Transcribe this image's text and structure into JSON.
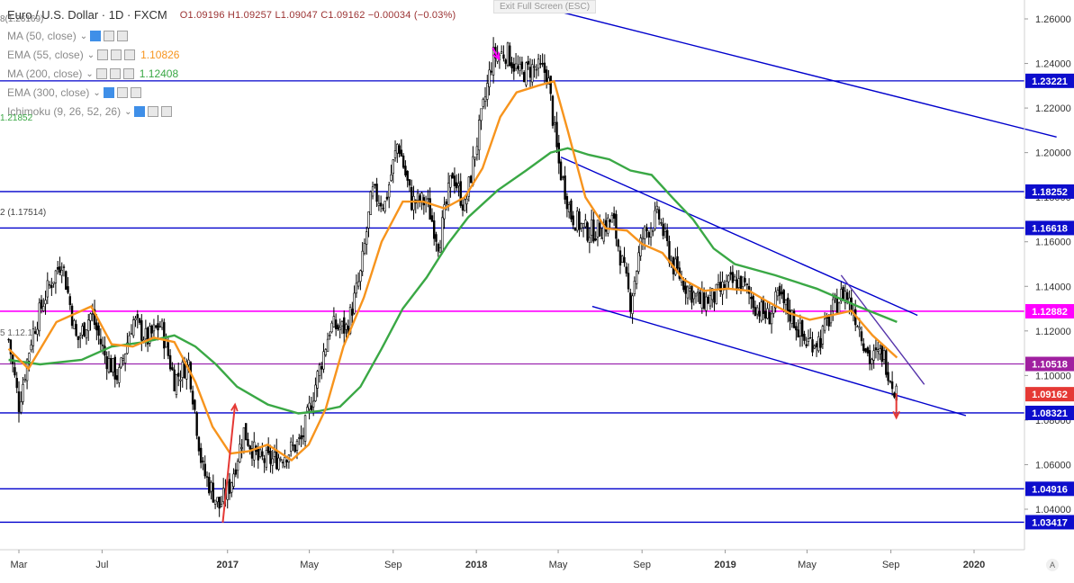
{
  "header": {
    "symbol": "Euro / U.S. Dollar",
    "interval": "1D",
    "exchange": "FXCM",
    "ohlc": "O1.09196  H1.09257  L1.09047  C1.09162  −0.00034 (−0.03%)",
    "exit_fullscreen": "Exit Full Screen (ESC)"
  },
  "indicators": [
    {
      "label": "MA (50, close)",
      "value": "",
      "color": "#8a8a8a"
    },
    {
      "label": "EMA (55, close)",
      "value": "1.10826",
      "color": "#f7941d"
    },
    {
      "label": "MA (200, close)",
      "value": "1.12408",
      "color": "#3aa845"
    },
    {
      "label": "EMA (300, close)",
      "value": "",
      "color": "#8a8a8a"
    },
    {
      "label": "Ichimoku (9, 26, 52, 26)",
      "value": "",
      "color": "#8a8a8a"
    }
  ],
  "fragments": {
    "f1": "8(1.26169)",
    "f2": "2 (1.17514)",
    "f3": "5 1.12.1"
  },
  "ichimoku_value": "1.21852",
  "colors": {
    "candle": "#000000",
    "ema55": "#f7941d",
    "ma200": "#3aa845",
    "level_blue": "#0000cc",
    "level_pink": "#ff00ff",
    "level_purple": "#9c27b0",
    "label_blue": "#0d0dcc",
    "label_pink": "#ff00ff",
    "label_purple": "#a020a0",
    "label_red": "#e53935"
  },
  "chart_data": {
    "type": "line",
    "yticks": [
      1.26,
      1.24,
      1.22,
      1.2,
      1.18,
      1.16,
      1.14,
      1.12,
      1.1,
      1.08,
      1.06,
      1.04
    ],
    "ytick_labels": [
      "1.26000",
      "1.24000",
      "1.22000",
      "1.20000",
      "1.18000",
      "1.16000",
      "1.14000",
      "1.12000",
      "1.10000",
      "1.08000",
      "1.06000",
      "1.04000"
    ],
    "xticks": [
      {
        "label": "Mar",
        "date": "2016-03-01",
        "bold": false
      },
      {
        "label": "Jul",
        "date": "2016-07-01",
        "bold": false
      },
      {
        "label": "2017",
        "date": "2017-01-01",
        "bold": true
      },
      {
        "label": "May",
        "date": "2017-05-01",
        "bold": false
      },
      {
        "label": "Sep",
        "date": "2017-09-01",
        "bold": false
      },
      {
        "label": "2018",
        "date": "2018-01-01",
        "bold": true
      },
      {
        "label": "May",
        "date": "2018-05-01",
        "bold": false
      },
      {
        "label": "Sep",
        "date": "2018-09-01",
        "bold": false
      },
      {
        "label": "2019",
        "date": "2019-01-01",
        "bold": true
      },
      {
        "label": "May",
        "date": "2019-05-01",
        "bold": false
      },
      {
        "label": "Sep",
        "date": "2019-09-01",
        "bold": false
      },
      {
        "label": "2020",
        "date": "2020-01-01",
        "bold": true
      }
    ],
    "price_levels": [
      {
        "value": 1.23221,
        "label": "1.23221",
        "style": "blue"
      },
      {
        "value": 1.18252,
        "label": "1.18252",
        "style": "blue"
      },
      {
        "value": 1.16618,
        "label": "1.16618",
        "style": "blue"
      },
      {
        "value": 1.12882,
        "label": "1.12882",
        "style": "pink"
      },
      {
        "value": 1.10518,
        "label": "1.10518",
        "style": "purple"
      },
      {
        "value": 1.08321,
        "label": "1.08321",
        "style": "blue"
      },
      {
        "value": 1.04916,
        "label": "1.04916",
        "style": "blue"
      },
      {
        "value": 1.03417,
        "label": "1.03417",
        "style": "blue"
      }
    ],
    "last_price": {
      "value": 1.09162,
      "label": "1.09162"
    },
    "close_series": [
      [
        "2016-02-15",
        1.116
      ],
      [
        "2016-03-01",
        1.087
      ],
      [
        "2016-03-20",
        1.118
      ],
      [
        "2016-04-10",
        1.137
      ],
      [
        "2016-05-03",
        1.152
      ],
      [
        "2016-05-25",
        1.115
      ],
      [
        "2016-06-15",
        1.128
      ],
      [
        "2016-07-05",
        1.109
      ],
      [
        "2016-07-25",
        1.099
      ],
      [
        "2016-08-15",
        1.125
      ],
      [
        "2016-09-05",
        1.116
      ],
      [
        "2016-09-25",
        1.123
      ],
      [
        "2016-10-15",
        1.098
      ],
      [
        "2016-11-05",
        1.106
      ],
      [
        "2016-11-25",
        1.058
      ],
      [
        "2016-12-20",
        1.041
      ],
      [
        "2017-01-05",
        1.051
      ],
      [
        "2017-01-25",
        1.075
      ],
      [
        "2017-02-15",
        1.062
      ],
      [
        "2017-03-10",
        1.062
      ],
      [
        "2017-04-01",
        1.066
      ],
      [
        "2017-04-20",
        1.071
      ],
      [
        "2017-05-10",
        1.096
      ],
      [
        "2017-06-01",
        1.122
      ],
      [
        "2017-06-25",
        1.121
      ],
      [
        "2017-07-15",
        1.145
      ],
      [
        "2017-08-01",
        1.182
      ],
      [
        "2017-08-20",
        1.177
      ],
      [
        "2017-09-08",
        1.205
      ],
      [
        "2017-09-28",
        1.178
      ],
      [
        "2017-10-20",
        1.178
      ],
      [
        "2017-11-07",
        1.159
      ],
      [
        "2017-11-27",
        1.191
      ],
      [
        "2017-12-15",
        1.175
      ],
      [
        "2018-01-02",
        1.205
      ],
      [
        "2018-01-25",
        1.243
      ],
      [
        "2018-02-15",
        1.245
      ],
      [
        "2018-03-05",
        1.235
      ],
      [
        "2018-03-25",
        1.238
      ],
      [
        "2018-04-15",
        1.236
      ],
      [
        "2018-05-01",
        1.196
      ],
      [
        "2018-05-20",
        1.172
      ],
      [
        "2018-06-10",
        1.165
      ],
      [
        "2018-06-28",
        1.165
      ],
      [
        "2018-07-20",
        1.17
      ],
      [
        "2018-08-15",
        1.133
      ],
      [
        "2018-09-01",
        1.162
      ],
      [
        "2018-09-25",
        1.172
      ],
      [
        "2018-10-15",
        1.15
      ],
      [
        "2018-11-05",
        1.14
      ],
      [
        "2018-11-25",
        1.133
      ],
      [
        "2018-12-15",
        1.135
      ],
      [
        "2019-01-05",
        1.141
      ],
      [
        "2019-01-25",
        1.142
      ],
      [
        "2019-02-15",
        1.131
      ],
      [
        "2019-03-05",
        1.126
      ],
      [
        "2019-03-20",
        1.135
      ],
      [
        "2019-04-10",
        1.126
      ],
      [
        "2019-04-28",
        1.115
      ],
      [
        "2019-05-20",
        1.116
      ],
      [
        "2019-06-10",
        1.131
      ],
      [
        "2019-06-25",
        1.138
      ],
      [
        "2019-07-15",
        1.124
      ],
      [
        "2019-08-01",
        1.107
      ],
      [
        "2019-08-20",
        1.11
      ],
      [
        "2019-09-03",
        1.097
      ],
      [
        "2019-09-10",
        1.092
      ]
    ],
    "ema55": [
      [
        "2016-02-15",
        1.112
      ],
      [
        "2016-03-15",
        1.103
      ],
      [
        "2016-04-25",
        1.124
      ],
      [
        "2016-06-15",
        1.131
      ],
      [
        "2016-07-15",
        1.114
      ],
      [
        "2016-08-15",
        1.113
      ],
      [
        "2016-09-15",
        1.117
      ],
      [
        "2016-10-15",
        1.115
      ],
      [
        "2016-11-15",
        1.097
      ],
      [
        "2016-12-10",
        1.077
      ],
      [
        "2017-01-05",
        1.065
      ],
      [
        "2017-02-01",
        1.066
      ],
      [
        "2017-03-01",
        1.069
      ],
      [
        "2017-04-05",
        1.062
      ],
      [
        "2017-04-30",
        1.069
      ],
      [
        "2017-05-25",
        1.085
      ],
      [
        "2017-06-20",
        1.113
      ],
      [
        "2017-07-20",
        1.135
      ],
      [
        "2017-08-15",
        1.16
      ],
      [
        "2017-09-15",
        1.178
      ],
      [
        "2017-10-15",
        1.178
      ],
      [
        "2017-11-15",
        1.175
      ],
      [
        "2017-12-15",
        1.18
      ],
      [
        "2018-01-10",
        1.193
      ],
      [
        "2018-02-05",
        1.216
      ],
      [
        "2018-03-01",
        1.227
      ],
      [
        "2018-04-01",
        1.23
      ],
      [
        "2018-04-25",
        1.232
      ],
      [
        "2018-05-15",
        1.21
      ],
      [
        "2018-06-10",
        1.18
      ],
      [
        "2018-07-10",
        1.166
      ],
      [
        "2018-08-10",
        1.165
      ],
      [
        "2018-09-01",
        1.159
      ],
      [
        "2018-10-01",
        1.155
      ],
      [
        "2018-11-01",
        1.143
      ],
      [
        "2018-12-01",
        1.138
      ],
      [
        "2019-01-05",
        1.139
      ],
      [
        "2019-02-05",
        1.138
      ],
      [
        "2019-03-05",
        1.133
      ],
      [
        "2019-04-05",
        1.128
      ],
      [
        "2019-05-05",
        1.125
      ],
      [
        "2019-06-05",
        1.127
      ],
      [
        "2019-07-05",
        1.129
      ],
      [
        "2019-08-05",
        1.118
      ],
      [
        "2019-09-10",
        1.108
      ]
    ],
    "ma200": [
      [
        "2016-02-15",
        1.107
      ],
      [
        "2016-04-01",
        1.105
      ],
      [
        "2016-06-01",
        1.107
      ],
      [
        "2016-07-15",
        1.113
      ],
      [
        "2016-09-01",
        1.115
      ],
      [
        "2016-10-15",
        1.118
      ],
      [
        "2016-11-15",
        1.113
      ],
      [
        "2016-12-15",
        1.105
      ],
      [
        "2017-01-15",
        1.095
      ],
      [
        "2017-03-01",
        1.087
      ],
      [
        "2017-04-15",
        1.083
      ],
      [
        "2017-05-15",
        1.084
      ],
      [
        "2017-06-15",
        1.086
      ],
      [
        "2017-07-15",
        1.095
      ],
      [
        "2017-08-15",
        1.112
      ],
      [
        "2017-09-15",
        1.13
      ],
      [
        "2017-10-20",
        1.144
      ],
      [
        "2017-11-20",
        1.159
      ],
      [
        "2017-12-20",
        1.171
      ],
      [
        "2018-02-01",
        1.183
      ],
      [
        "2018-03-15",
        1.192
      ],
      [
        "2018-04-20",
        1.2
      ],
      [
        "2018-05-15",
        1.202
      ],
      [
        "2018-06-15",
        1.199
      ],
      [
        "2018-07-15",
        1.197
      ],
      [
        "2018-08-15",
        1.192
      ],
      [
        "2018-09-15",
        1.19
      ],
      [
        "2018-10-15",
        1.18
      ],
      [
        "2018-11-15",
        1.17
      ],
      [
        "2018-12-15",
        1.157
      ],
      [
        "2019-01-15",
        1.15
      ],
      [
        "2019-03-15",
        1.145
      ],
      [
        "2019-05-15",
        1.139
      ],
      [
        "2019-07-15",
        1.131
      ],
      [
        "2019-09-10",
        1.124
      ]
    ],
    "trendlines": [
      {
        "x1": "2018-05-05",
        "y1": 1.198,
        "x2": "2019-10-10",
        "y2": 1.127,
        "color": "#0000cc"
      },
      {
        "x1": "2018-06-20",
        "y1": 1.131,
        "x2": "2019-12-20",
        "y2": 1.082,
        "color": "#0000cc"
      },
      {
        "x1": "2018-04-10",
        "y1": 1.265,
        "x2": "2020-05-01",
        "y2": 1.207,
        "color": "#0000cc"
      },
      {
        "x1": "2019-06-20",
        "y1": 1.145,
        "x2": "2019-10-20",
        "y2": 1.096,
        "color": "#5533aa"
      }
    ],
    "arrows": [
      {
        "x1": "2016-12-25",
        "y1": 1.034,
        "x2": "2017-01-12",
        "y2": 1.087,
        "color": "#e53935"
      },
      {
        "x1": "2019-09-09",
        "y1": 1.092,
        "x2": "2019-09-09",
        "y2": 1.081,
        "color": "#e53935"
      },
      {
        "x1": "2018-01-25",
        "y1": 1.247,
        "x2": "2018-02-03",
        "y2": 1.242,
        "color": "#ff00ff"
      }
    ]
  }
}
